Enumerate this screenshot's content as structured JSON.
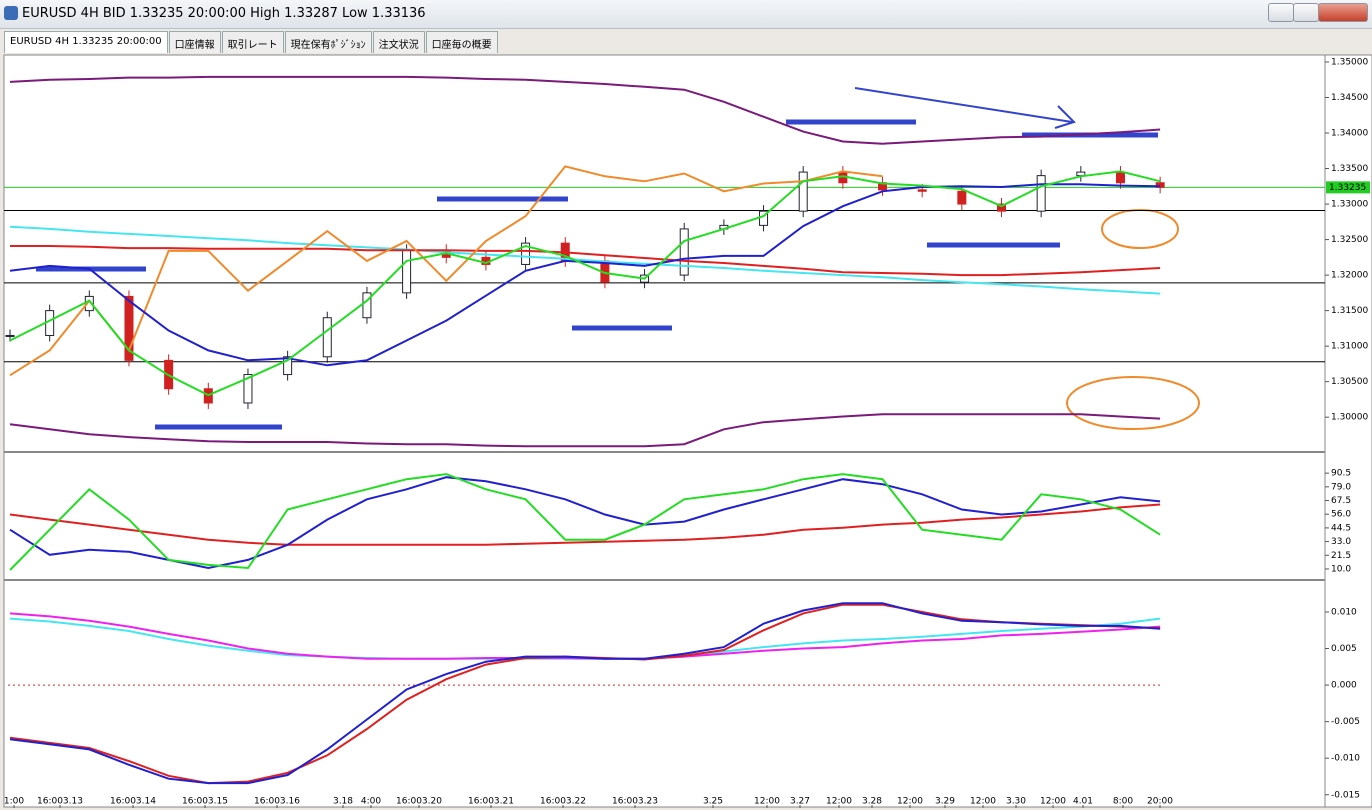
{
  "window": {
    "title": "EURUSD 4H BID 1.33235 20:00:00 High 1.33287 Low 1.33136"
  },
  "tabs": [
    "EURUSD 4H 1.33235 20:00:00",
    "口座情報",
    "取引レート",
    "現在保有ﾎﾟｼﾞｼｮﾝ",
    "注文状況",
    "口座毎の概要"
  ],
  "x_labels": [
    "1:00",
    "16:003.13",
    "16:003.14",
    "16:003.15",
    "16:003.16",
    "3.18",
    "4:00",
    "16:003.20",
    "16:003.21",
    "16:003.22",
    "16:003.23",
    "3.25",
    "12:00",
    "3.27",
    "12:00",
    "3.28",
    "12:00",
    "3.29",
    "12:00",
    "3.30",
    "12:00",
    "4.01",
    "8:00",
    "20:00"
  ],
  "price_chart": {
    "ylim": [
      1.29538,
      1.3507
    ],
    "yticks": [
      {
        "value": 1.3,
        "label": "1.30000"
      },
      {
        "value": 1.305,
        "label": "1.30500"
      },
      {
        "value": 1.31,
        "label": "1.31000"
      },
      {
        "value": 1.315,
        "label": "1.31500"
      },
      {
        "value": 1.32,
        "label": "1.32000"
      },
      {
        "value": 1.325,
        "label": "1.32500"
      },
      {
        "value": 1.33,
        "label": "1.33000"
      },
      {
        "value": 1.335,
        "label": "1.33500"
      },
      {
        "value": 1.34,
        "label": "1.34000"
      },
      {
        "value": 1.345,
        "label": "1.34500"
      },
      {
        "value": 1.35,
        "label": "1.35000"
      }
    ],
    "current_price": 1.33235,
    "levels": [
      1.3291,
      1.3189,
      1.3078
    ],
    "closes": [
      1.3115,
      1.315,
      1.317,
      1.308,
      1.304,
      1.302,
      1.306,
      1.3085,
      1.314,
      1.3175,
      1.3235,
      1.3225,
      1.3215,
      1.3245,
      1.322,
      1.319,
      1.32,
      1.3265,
      1.327,
      1.329,
      1.3345,
      1.333,
      1.332,
      1.3318,
      1.33,
      1.329,
      1.334,
      1.3345,
      1.333,
      1.33235
    ],
    "series": [
      {
        "color": "#7a1a7a",
        "values": [
          1.3472,
          1.3475,
          1.3476,
          1.3478,
          1.3478,
          1.3479,
          1.3479,
          1.3479,
          1.3479,
          1.3479,
          1.3479,
          1.3478,
          1.3476,
          1.3475,
          1.3472,
          1.3469,
          1.3465,
          1.3461,
          1.3444,
          1.3423,
          1.3402,
          1.3388,
          1.3385,
          1.3388,
          1.3391,
          1.3394,
          1.3395,
          1.3398,
          1.3401,
          1.3405
        ]
      },
      {
        "color": "#7a1a7a",
        "values": [
          1.299,
          1.2983,
          1.2976,
          1.2972,
          1.2969,
          1.2966,
          1.2965,
          1.2965,
          1.2965,
          1.2963,
          1.2962,
          1.2962,
          1.296,
          1.2959,
          1.2959,
          1.2959,
          1.2959,
          1.2962,
          1.2983,
          1.2993,
          1.2997,
          1.3001,
          1.3004,
          1.3004,
          1.3004,
          1.3004,
          1.3004,
          1.3004,
          1.3001,
          1.2998
        ]
      },
      {
        "color": "#44e6f0",
        "values": [
          1.3268,
          1.3265,
          1.3261,
          1.3258,
          1.3255,
          1.3252,
          1.3249,
          1.3245,
          1.3242,
          1.3239,
          1.3236,
          1.3232,
          1.3229,
          1.3226,
          1.3223,
          1.3219,
          1.3216,
          1.3213,
          1.321,
          1.3206,
          1.3203,
          1.32,
          1.3197,
          1.3193,
          1.319,
          1.3187,
          1.3184,
          1.318,
          1.3177,
          1.3174
        ]
      },
      {
        "color": "#e02020",
        "values": [
          1.3241,
          1.3241,
          1.324,
          1.3238,
          1.3238,
          1.3237,
          1.3237,
          1.3237,
          1.3237,
          1.3235,
          1.3235,
          1.3235,
          1.3234,
          1.3234,
          1.3232,
          1.3228,
          1.3224,
          1.322,
          1.3217,
          1.3213,
          1.3209,
          1.3204,
          1.3203,
          1.3202,
          1.32,
          1.32,
          1.3202,
          1.3204,
          1.3207,
          1.321
        ]
      },
      {
        "color": "#f08a2a",
        "values": [
          1.3059,
          1.3094,
          1.3164,
          1.3094,
          1.3234,
          1.3234,
          1.3178,
          1.322,
          1.3262,
          1.322,
          1.3248,
          1.3192,
          1.3248,
          1.3283,
          1.3353,
          1.3339,
          1.3332,
          1.3343,
          1.3318,
          1.3329,
          1.3332,
          1.3346,
          1.3339,
          null,
          null,
          null,
          null,
          null,
          null,
          null
        ]
      },
      {
        "color": "#2020d0",
        "values": [
          1.3206,
          1.3213,
          1.3209,
          1.3164,
          1.3122,
          1.3094,
          1.308,
          1.3083,
          1.3073,
          1.308,
          1.3108,
          1.3136,
          1.3171,
          1.3206,
          1.322,
          1.3217,
          1.3213,
          1.3223,
          1.3227,
          1.3227,
          1.3269,
          1.3297,
          1.3318,
          1.3324,
          1.3325,
          1.3324,
          1.3328,
          1.3328,
          1.3326,
          1.3325
        ]
      },
      {
        "color": "#22dd22",
        "values": [
          1.3108,
          1.3136,
          1.3164,
          1.3094,
          1.3059,
          1.3031,
          1.3055,
          1.308,
          1.3122,
          1.3164,
          1.322,
          1.3231,
          1.3217,
          1.3241,
          1.3227,
          1.3203,
          1.3195,
          1.3248,
          1.3265,
          1.3283,
          1.3332,
          1.3339,
          1.3329,
          1.3326,
          1.3321,
          1.3297,
          1.3325,
          1.3339,
          1.3346,
          1.3332
        ]
      }
    ]
  },
  "oscillator": {
    "ylim": [
      2.4,
      106.6
    ],
    "yticks": [
      90.5,
      {
        "value": 79,
        "label": "79.0"
      },
      67.5,
      {
        "value": 56,
        "label": "56.0"
      },
      44.5,
      {
        "value": 33,
        "label": "33.0"
      },
      21.5,
      {
        "value": 10,
        "label": "10.0"
      }
    ],
    "series": [
      {
        "color": "#e02020",
        "values": [
          55.8,
          51.5,
          47.3,
          43.0,
          38.8,
          34.6,
          32.0,
          30.3,
          30.3,
          30.3,
          30.3,
          30.3,
          30.3,
          31.2,
          32.0,
          32.9,
          33.7,
          34.6,
          36.3,
          38.8,
          43.0,
          44.7,
          47.3,
          48.9,
          51.5,
          53.2,
          55.8,
          58.3,
          61.7,
          64.2
        ]
      },
      {
        "color": "#2020d0",
        "values": [
          43.0,
          21.9,
          26.1,
          24.4,
          17.6,
          10.8,
          17.6,
          30.3,
          51.5,
          68.5,
          76.9,
          87.1,
          83.7,
          76.9,
          68.5,
          55.8,
          47.3,
          49.8,
          60.0,
          68.5,
          76.9,
          85.4,
          81.2,
          72.7,
          60.0,
          55.8,
          58.3,
          64.2,
          70.2,
          66.8
        ]
      },
      {
        "color": "#22dd22",
        "values": [
          9.1,
          43.0,
          76.9,
          51.5,
          17.6,
          13.4,
          10.8,
          60.0,
          68.5,
          76.9,
          85.4,
          89.7,
          76.9,
          68.5,
          34.6,
          34.6,
          47.3,
          68.5,
          72.7,
          76.9,
          85.4,
          89.7,
          85.4,
          43.0,
          38.8,
          34.6,
          72.7,
          68.5,
          60.0,
          38.8
        ]
      }
    ]
  },
  "macd": {
    "ylim": [
      -0.0164,
      0.0141
    ],
    "yticks": [
      {
        "value": 0.01,
        "label": "0.010"
      },
      {
        "value": 0.005,
        "label": "0.005"
      },
      {
        "value": 0,
        "label": "0.000"
      },
      {
        "value": -0.005,
        "label": "-0.005"
      },
      {
        "value": -0.01,
        "label": "-0.010"
      },
      {
        "value": -0.015,
        "label": "-0.015"
      }
    ],
    "series": [
      {
        "color": "#44e6f0",
        "values": [
          0.0091,
          0.0087,
          0.0081,
          0.0074,
          0.0063,
          0.0054,
          0.0047,
          0.0041,
          0.0039,
          0.0037,
          0.0036,
          0.0036,
          0.0036,
          0.0036,
          0.0036,
          0.0036,
          0.0036,
          0.0039,
          0.0046,
          0.0052,
          0.0057,
          0.0061,
          0.0063,
          0.0066,
          0.007,
          0.0074,
          0.0077,
          0.008,
          0.0084,
          0.0091
        ]
      },
      {
        "color": "#ee22ee",
        "values": [
          0.0098,
          0.0094,
          0.0088,
          0.008,
          0.007,
          0.0061,
          0.005,
          0.0043,
          0.0039,
          0.0036,
          0.0036,
          0.0036,
          0.0037,
          0.0037,
          0.0037,
          0.0036,
          0.0036,
          0.0039,
          0.0043,
          0.0047,
          0.005,
          0.0052,
          0.0057,
          0.0061,
          0.0063,
          0.0068,
          0.007,
          0.0073,
          0.0076,
          0.008
        ]
      },
      {
        "color": "#e02020",
        "values": [
          -0.0072,
          -0.0079,
          -0.0086,
          -0.0104,
          -0.0124,
          -0.0134,
          -0.0132,
          -0.012,
          -0.0096,
          -0.006,
          -0.002,
          0.0008,
          0.0028,
          0.0037,
          0.0039,
          0.0037,
          0.0035,
          0.004,
          0.0048,
          0.0075,
          0.0098,
          0.011,
          0.011,
          0.01,
          0.009,
          0.0086,
          0.0084,
          0.0082,
          0.008,
          0.0078
        ]
      },
      {
        "color": "#2020d0",
        "values": [
          -0.0074,
          -0.0081,
          -0.0088,
          -0.0109,
          -0.0128,
          -0.0134,
          -0.0134,
          -0.0123,
          -0.0088,
          -0.0047,
          -0.0006,
          0.0015,
          0.0032,
          0.0039,
          0.0039,
          0.0036,
          0.0036,
          0.0043,
          0.0052,
          0.0084,
          0.0102,
          0.0112,
          0.0112,
          0.0098,
          0.0088,
          0.0086,
          0.0083,
          0.0081,
          0.0081,
          0.0077
        ]
      }
    ]
  }
}
